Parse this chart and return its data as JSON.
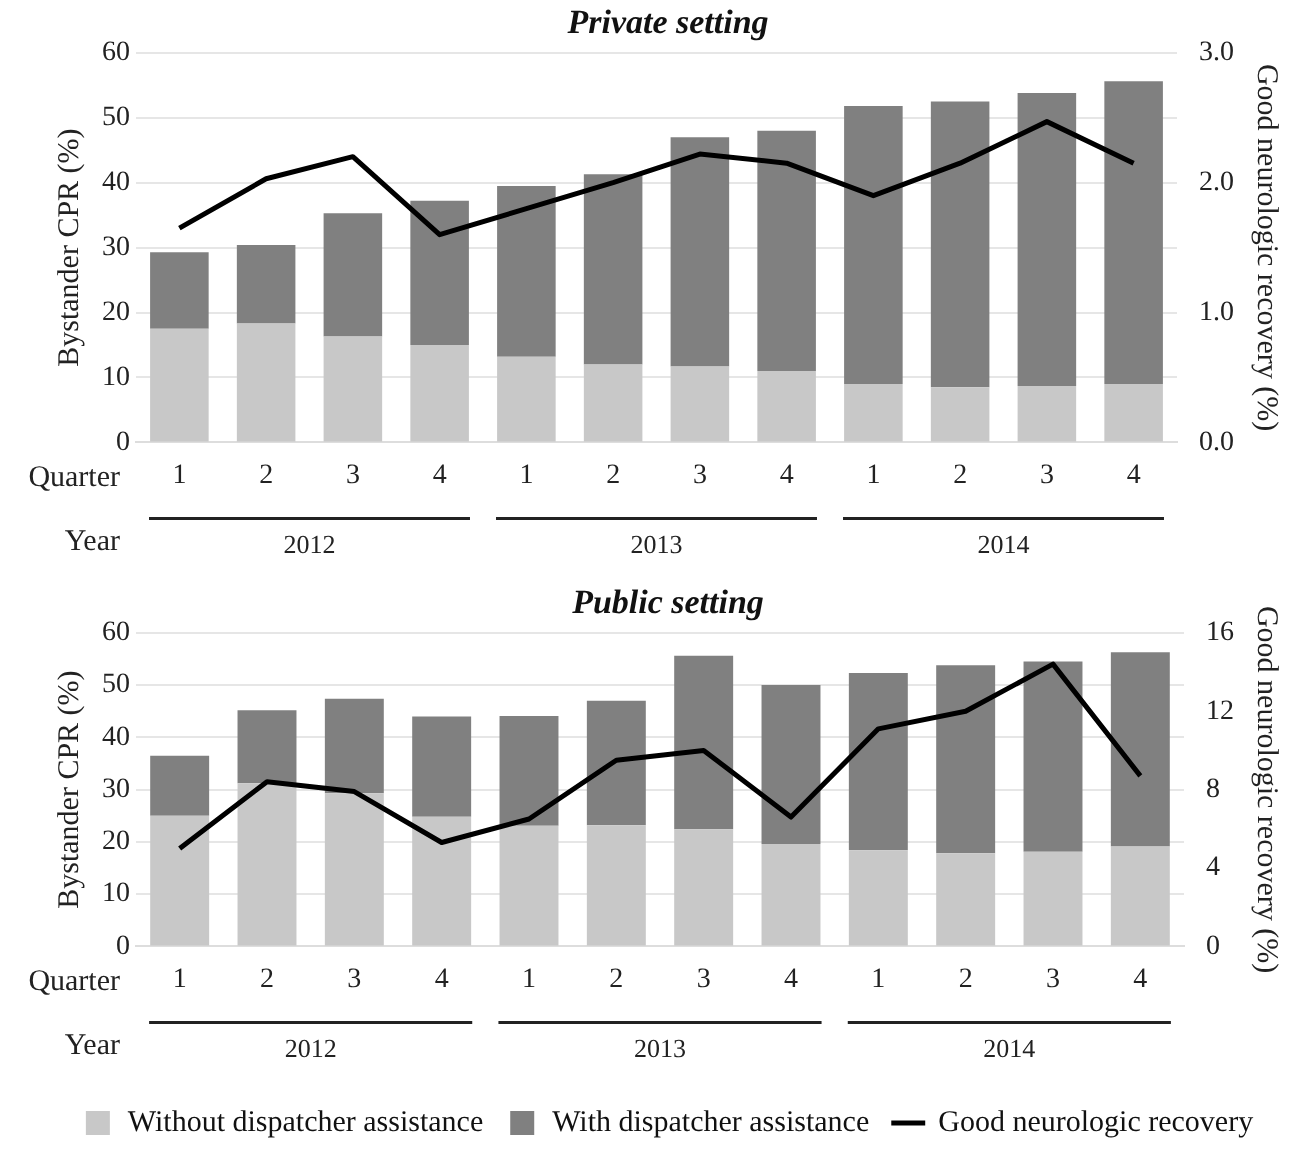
{
  "chart_data": [
    {
      "type": "bar",
      "title": "Private setting",
      "ylabel": "Bystander CPR (%)",
      "y2label": "Good neurologic recovery (%)",
      "categories": [
        "1",
        "2",
        "3",
        "4",
        "1",
        "2",
        "3",
        "4",
        "1",
        "2",
        "3",
        "4"
      ],
      "annotations": [
        "Quarter",
        "Year",
        "2012",
        "2013",
        "2014"
      ],
      "stacked": true,
      "grid": "y",
      "legend": false,
      "ylim": [
        0,
        60
      ],
      "yticks": [
        0,
        10,
        20,
        30,
        40,
        50,
        60
      ],
      "y2lim": [
        0,
        3
      ],
      "y2ticks": [
        {
          "value": 0,
          "label": "0.0"
        },
        {
          "value": 1,
          "label": "1.0"
        },
        {
          "value": 2,
          "label": "2.0"
        },
        {
          "value": 3,
          "label": "3.0"
        }
      ],
      "series": [
        {
          "color": "#c8c8c8",
          "values": [
            17.5,
            18.3,
            16.3,
            15,
            13.2,
            12,
            11.7,
            11,
            9,
            8.5,
            8.7,
            9
          ]
        },
        {
          "color": "#808080",
          "values": [
            11.8,
            12.1,
            19.0,
            22.2,
            26.3,
            29.3,
            35.3,
            37.0,
            42.8,
            44.0,
            45.1,
            46.6
          ]
        },
        {
          "type": "line",
          "axis": "y2",
          "color": "#000000",
          "marker": "none",
          "values": [
            1.65,
            2.03,
            2.2,
            1.6,
            1.8,
            2.0,
            2.22,
            2.15,
            1.9,
            2.15,
            2.47,
            2.15
          ]
        }
      ]
    },
    {
      "type": "bar",
      "title": "Public setting",
      "ylabel": "Bystander CPR (%)",
      "y2label": "Good neurologic recovery (%)",
      "categories": [
        "1",
        "2",
        "3",
        "4",
        "1",
        "2",
        "3",
        "4",
        "1",
        "2",
        "3",
        "4"
      ],
      "annotations": [
        "Quarter",
        "Year",
        "2012",
        "2013",
        "2014"
      ],
      "stacked": true,
      "grid": "y",
      "legend": "bottom",
      "ylim": [
        0,
        60
      ],
      "yticks": [
        0,
        10,
        20,
        30,
        40,
        50,
        60
      ],
      "y2lim": [
        0,
        16
      ],
      "y2ticks": [
        0,
        4,
        8,
        12,
        16
      ],
      "series": [
        {
          "name": "Without dispatcher assistance",
          "color": "#c8c8c8",
          "values": [
            25,
            31.2,
            29.3,
            24.8,
            23.1,
            23.2,
            22.4,
            19.6,
            18.4,
            17.8,
            18.1,
            19.1
          ]
        },
        {
          "name": "With dispatcher assistance",
          "color": "#808080",
          "values": [
            11.5,
            14.0,
            18.1,
            19.2,
            21.0,
            23.8,
            33.2,
            30.4,
            33.9,
            36.0,
            36.4,
            37.2
          ]
        },
        {
          "name": "Good neurologic recovery",
          "type": "line",
          "axis": "y2",
          "color": "#000000",
          "marker": "none",
          "values": [
            5.0,
            8.4,
            7.9,
            5.3,
            6.5,
            9.5,
            10.0,
            6.6,
            11.1,
            12.0,
            14.4,
            8.7
          ]
        }
      ]
    }
  ]
}
